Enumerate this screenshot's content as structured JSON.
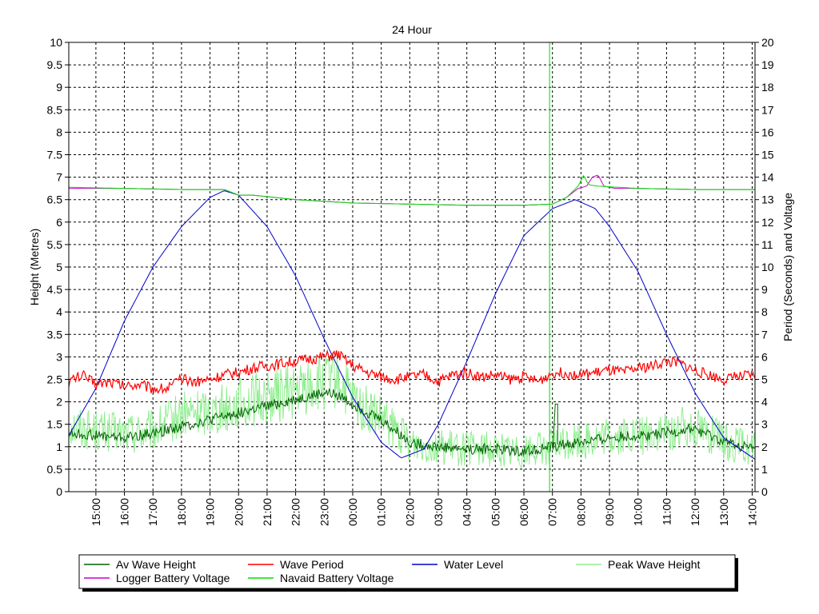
{
  "chart_data": {
    "type": "line",
    "title": "24 Hour",
    "ylabel_left": "Height (Metres)",
    "ylabel_right": "Period (Seconds) and Voltage",
    "ylim_left": [
      0,
      10
    ],
    "ylim_right": [
      0,
      20
    ],
    "yticks_left": [
      "0",
      "0.5",
      "1",
      "1.5",
      "2",
      "2.5",
      "3",
      "3.5",
      "4",
      "4.5",
      "5",
      "5.5",
      "6",
      "6.5",
      "7",
      "7.5",
      "8",
      "8.5",
      "9",
      "9.5",
      "10"
    ],
    "yticks_right": [
      "0",
      "1",
      "2",
      "3",
      "4",
      "5",
      "6",
      "7",
      "8",
      "9",
      "10",
      "11",
      "12",
      "13",
      "14",
      "15",
      "16",
      "17",
      "18",
      "19",
      "20"
    ],
    "x_unit": "hours since 14:00",
    "xlim": [
      0.05,
      24.1
    ],
    "x_ticks": [
      {
        "x": 1,
        "label": "15:00"
      },
      {
        "x": 2,
        "label": "16:00"
      },
      {
        "x": 3,
        "label": "17:00"
      },
      {
        "x": 4,
        "label": "18:00"
      },
      {
        "x": 5,
        "label": "19:00"
      },
      {
        "x": 6,
        "label": "20:00"
      },
      {
        "x": 7,
        "label": "21:00"
      },
      {
        "x": 8,
        "label": "22:00"
      },
      {
        "x": 9,
        "label": "23:00"
      },
      {
        "x": 10,
        "label": "00:00"
      },
      {
        "x": 11,
        "label": "01:00"
      },
      {
        "x": 12,
        "label": "02:00"
      },
      {
        "x": 13,
        "label": "03:00"
      },
      {
        "x": 14,
        "label": "04:00"
      },
      {
        "x": 15,
        "label": "05:00"
      },
      {
        "x": 16,
        "label": "06:00"
      },
      {
        "x": 17,
        "label": "07:00"
      },
      {
        "x": 18,
        "label": "08:00"
      },
      {
        "x": 19,
        "label": "09:00"
      },
      {
        "x": 20,
        "label": "10:00"
      },
      {
        "x": 21,
        "label": "11:00"
      },
      {
        "x": 22,
        "label": "12:00"
      },
      {
        "x": 23,
        "label": "13:00"
      },
      {
        "x": 24,
        "label": "14:00"
      }
    ],
    "grid": true,
    "legend_position": "bottom",
    "series": [
      {
        "name": "Av Wave Height",
        "axis": "left",
        "color": "#006400",
        "width": 1,
        "x": [
          0.05,
          1,
          2,
          3,
          4,
          5,
          6,
          7,
          8,
          9,
          9.5,
          10,
          11,
          12,
          13,
          14,
          15,
          16,
          17,
          18,
          19,
          20,
          21,
          22,
          23,
          24.1
        ],
        "y": [
          1.3,
          1.25,
          1.2,
          1.3,
          1.45,
          1.6,
          1.75,
          1.9,
          2.05,
          2.2,
          2.15,
          1.95,
          1.6,
          1.1,
          1.0,
          0.95,
          0.95,
          0.9,
          1.0,
          1.1,
          1.2,
          1.25,
          1.3,
          1.4,
          1.1,
          0.95
        ]
      },
      {
        "name": "Wave Period",
        "axis": "right",
        "color": "#ff0000",
        "width": 1.2,
        "x": [
          0.05,
          0.5,
          1,
          1.5,
          2,
          2.5,
          3,
          3.5,
          4,
          4.5,
          5,
          5.5,
          6,
          6.5,
          7,
          7.5,
          8,
          8.5,
          9,
          9.5,
          10,
          10.5,
          11,
          11.5,
          12,
          12.5,
          13,
          13.5,
          14,
          14.5,
          15,
          15.5,
          16,
          16.5,
          17,
          17.5,
          18,
          18.5,
          19,
          19.5,
          20,
          20.5,
          21,
          21.5,
          22,
          22.5,
          23,
          23.5,
          24.1
        ],
        "y": [
          4.9,
          5.2,
          4.8,
          4.9,
          4.7,
          4.8,
          4.6,
          4.6,
          5.0,
          4.9,
          5.0,
          5.2,
          5.3,
          5.5,
          5.6,
          5.7,
          5.8,
          5.9,
          6.0,
          6.1,
          5.6,
          5.3,
          5.1,
          5.0,
          5.1,
          5.2,
          4.9,
          5.2,
          5.3,
          5.1,
          5.2,
          5.0,
          5.1,
          4.9,
          5.3,
          5.3,
          5.2,
          5.3,
          5.4,
          5.3,
          5.5,
          5.6,
          5.8,
          5.7,
          5.4,
          5.2,
          5.0,
          5.1,
          5.2
        ]
      },
      {
        "name": "Water Level",
        "axis": "left",
        "color": "#0000cc",
        "width": 1,
        "x": [
          0.05,
          1,
          2,
          3,
          4,
          5,
          5.5,
          6,
          7,
          8,
          9,
          10,
          11,
          11.7,
          12.5,
          13,
          14,
          15,
          16,
          17,
          17.8,
          18.5,
          19,
          20,
          21,
          22,
          23,
          24.1
        ],
        "y": [
          1.25,
          2.3,
          3.8,
          5.0,
          5.9,
          6.55,
          6.7,
          6.6,
          5.9,
          4.8,
          3.4,
          2.1,
          1.1,
          0.75,
          0.95,
          1.5,
          2.9,
          4.4,
          5.7,
          6.3,
          6.5,
          6.3,
          5.9,
          4.9,
          3.5,
          2.2,
          1.2,
          0.72
        ]
      },
      {
        "name": "Peak Wave Height",
        "axis": "left",
        "color": "#90ee90",
        "width": 1,
        "x": [
          0.05,
          1,
          2,
          3,
          4,
          5,
          6,
          7,
          8,
          9,
          9.5,
          10,
          11,
          12,
          13,
          14,
          15,
          16,
          17,
          18,
          19,
          20,
          21,
          22,
          23,
          24.1
        ],
        "y": [
          1.5,
          1.35,
          1.3,
          1.35,
          1.7,
          1.8,
          1.95,
          2.1,
          2.25,
          2.4,
          2.5,
          2.0,
          1.6,
          1.1,
          1.0,
          0.95,
          0.95,
          0.9,
          1.0,
          1.15,
          1.2,
          1.25,
          1.3,
          1.5,
          1.1,
          0.95
        ]
      },
      {
        "name": "Logger Battery Voltage",
        "axis": "right",
        "color": "#cc00cc",
        "width": 1,
        "x": [
          0.05,
          2,
          4,
          5.5,
          6,
          6.5,
          8,
          10,
          12,
          14,
          16,
          17,
          17.5,
          17.9,
          18.2,
          18.4,
          18.6,
          18.8,
          19.2,
          20,
          22,
          24.1
        ],
        "y": [
          13.5,
          13.5,
          13.45,
          13.45,
          13.2,
          13.2,
          13.0,
          12.85,
          12.8,
          12.75,
          12.75,
          12.8,
          13.1,
          13.5,
          13.6,
          14.0,
          14.1,
          13.6,
          13.5,
          13.5,
          13.45,
          13.45
        ]
      },
      {
        "name": "Navaid Battery Voltage",
        "axis": "right",
        "color": "#00dd00",
        "width": 1,
        "x": [
          0.05,
          2,
          4,
          5.5,
          6,
          6.5,
          8,
          10,
          12,
          14,
          16,
          17,
          17.5,
          17.9,
          18.1,
          18.2,
          18.3,
          18.6,
          20,
          22,
          24.1
        ],
        "y": [
          13.55,
          13.5,
          13.45,
          13.45,
          13.2,
          13.2,
          13.0,
          12.85,
          12.8,
          12.75,
          12.75,
          12.8,
          13.1,
          13.6,
          14.1,
          13.8,
          13.65,
          13.6,
          13.5,
          13.45,
          13.45
        ]
      }
    ],
    "annotations": {
      "spike_x": 16.9,
      "spike_series": "Navaid Battery Voltage",
      "small_spike_x": 17.1,
      "small_spike_series": "Av Wave Height",
      "small_spike_value": 1.95
    }
  }
}
